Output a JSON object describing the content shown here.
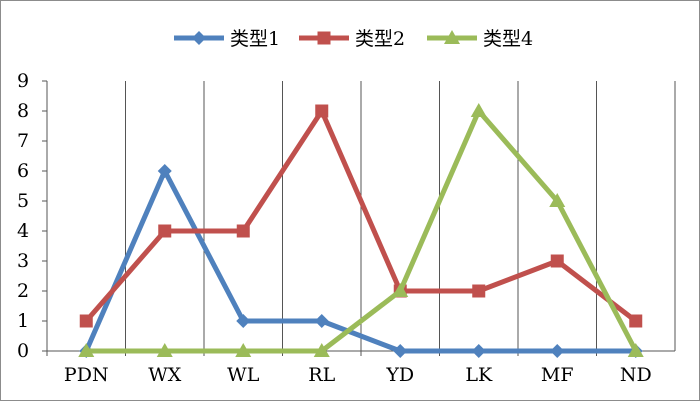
{
  "chart_data": {
    "type": "line",
    "categories": [
      "PDN",
      "WX",
      "WL",
      "RL",
      "YD",
      "LK",
      "MF",
      "ND"
    ],
    "series": [
      {
        "name": "类型1",
        "values": [
          0,
          6,
          1,
          1,
          0,
          0,
          0,
          0
        ],
        "color": "#4f81bd",
        "marker": "diamond"
      },
      {
        "name": "类型2",
        "values": [
          1,
          4,
          4,
          8,
          2,
          2,
          3,
          1
        ],
        "color": "#c0504d",
        "marker": "square"
      },
      {
        "name": "类型4",
        "values": [
          0,
          0,
          0,
          0,
          2,
          8,
          5,
          0
        ],
        "color": "#9bbb59",
        "marker": "triangle"
      }
    ],
    "ylim": [
      0,
      9
    ],
    "yticks": [
      0,
      1,
      2,
      3,
      4,
      5,
      6,
      7,
      8,
      9
    ],
    "grid": "vertical",
    "legend_position": "top"
  }
}
